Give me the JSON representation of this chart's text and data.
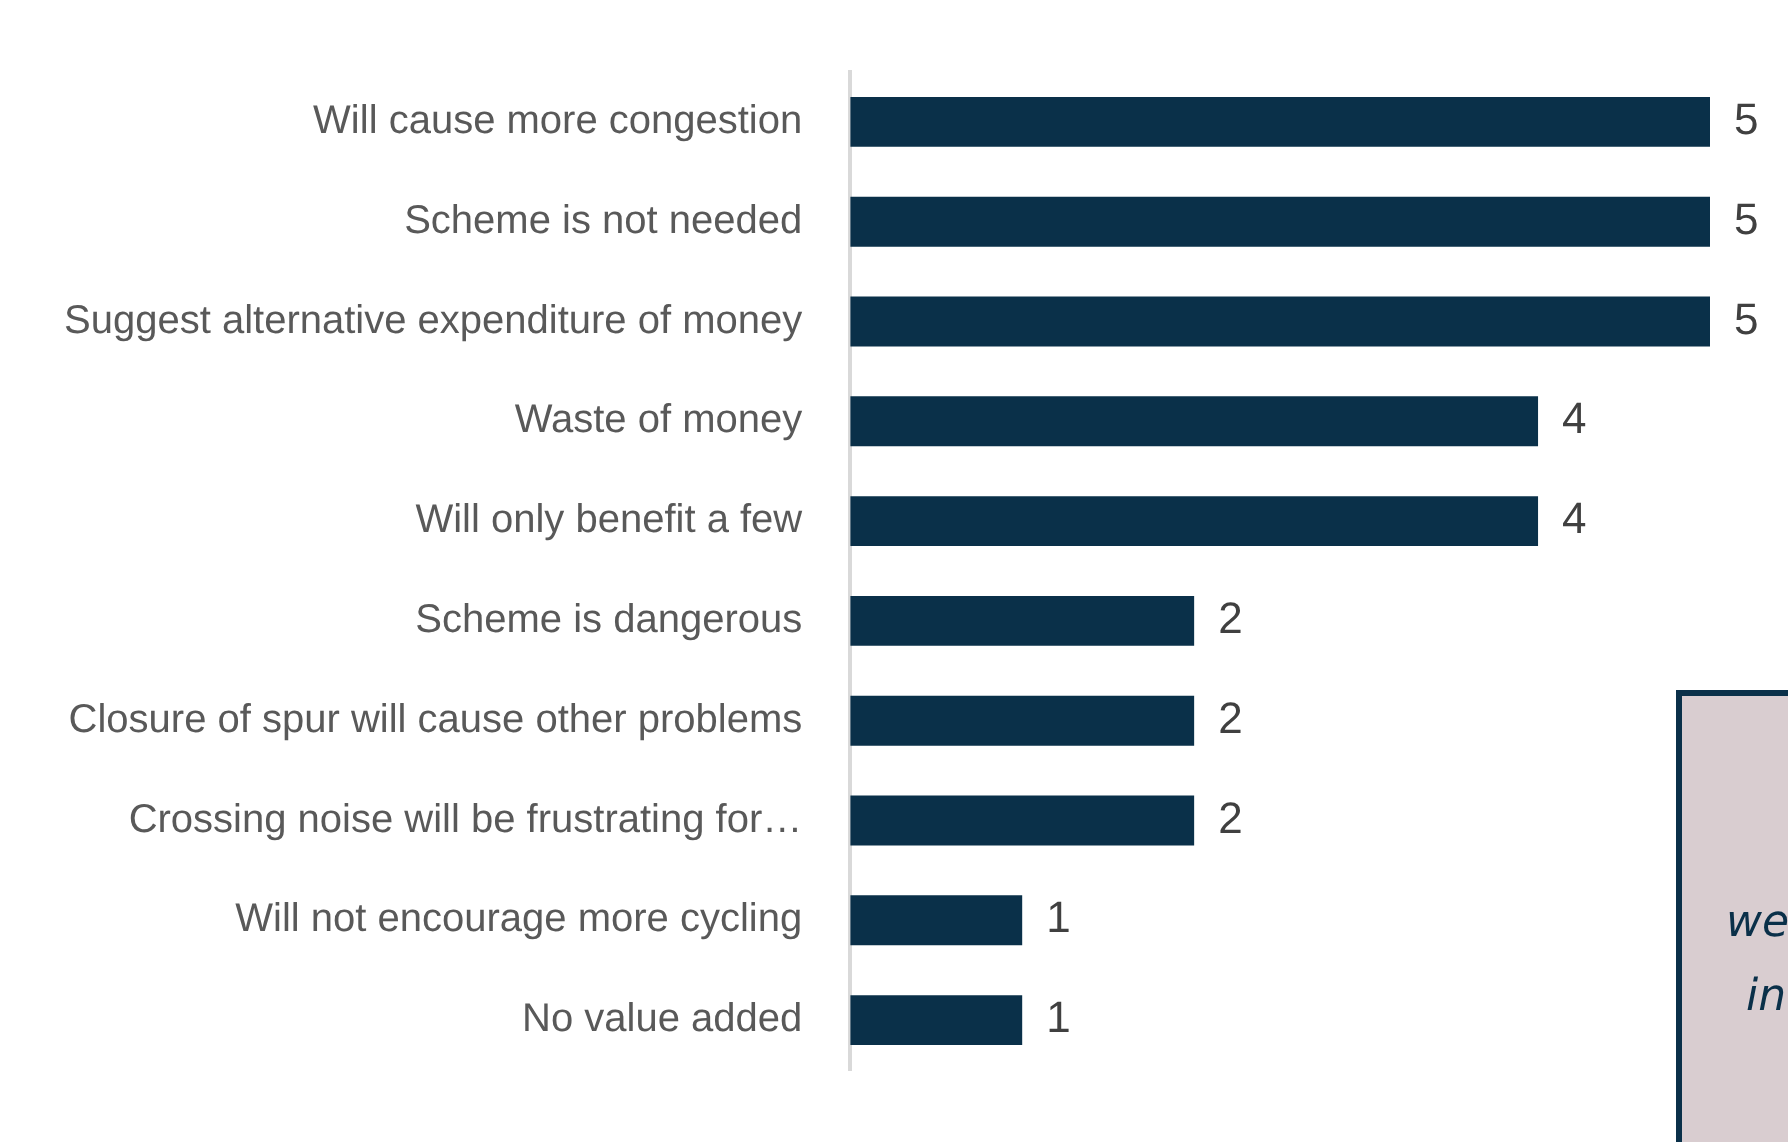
{
  "chart_data": {
    "type": "bar",
    "orientation": "horizontal",
    "categories": [
      "Will cause more congestion",
      "Scheme is not needed",
      "Suggest alternative expenditure of money",
      "Waste of money",
      "Will only benefit a few",
      "Scheme is dangerous",
      "Closure of spur will cause other problems",
      "Crossing noise will be frustrating for…",
      "Will not encourage more cycling",
      "No value added"
    ],
    "values": [
      5,
      5,
      5,
      4,
      4,
      2,
      2,
      2,
      1,
      1
    ],
    "color": "#0a3049",
    "data_labels": true,
    "grid": false,
    "legend": false,
    "tick_labels": "y",
    "annotations": [
      "we",
      "in"
    ]
  }
}
